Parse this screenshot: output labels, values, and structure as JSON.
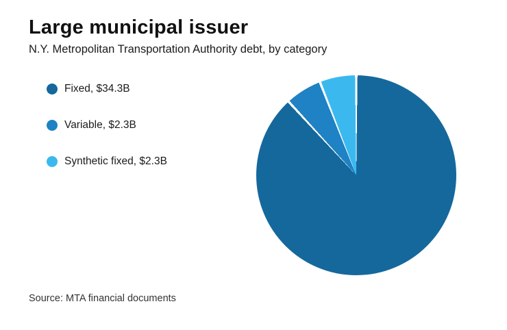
{
  "header": {
    "title": "Large municipal issuer",
    "subtitle": "N.Y. Metropolitan Transportation Authority debt, by category"
  },
  "footer": {
    "source": "Source: MTA financial documents"
  },
  "chart_data": {
    "type": "pie",
    "labels": [
      "Fixed",
      "Variable",
      "Synthetic fixed"
    ],
    "values": [
      34.3,
      2.3,
      2.3
    ],
    "unit": "$B",
    "display_labels": [
      "Fixed, $34.3B",
      "Variable, $2.3B",
      "Synthetic fixed, $2.3B"
    ],
    "colors": [
      "#15689c",
      "#1e82c4",
      "#3bb9ef"
    ],
    "slice_separator_color": "#ffffff",
    "start_angle_deg": 0,
    "direction": "clockwise",
    "legend_position": "left",
    "title": "Large municipal issuer",
    "subtitle": "N.Y. Metropolitan Transportation Authority debt, by category"
  }
}
